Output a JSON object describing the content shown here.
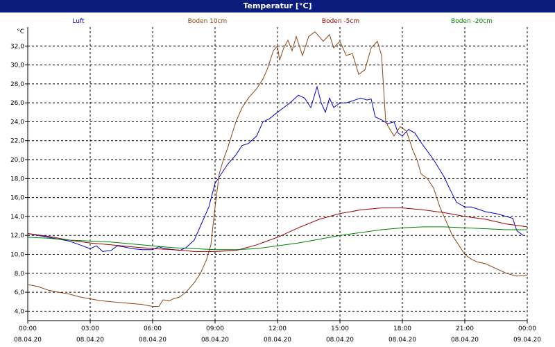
{
  "window": {
    "title": "Temperatur [°C]"
  },
  "chart_data": {
    "type": "line",
    "title": "Temperatur [°C]",
    "ylabel": "°C",
    "ylim": [
      3.0,
      34.0
    ],
    "xlim_hours": [
      0,
      24
    ],
    "grid": true,
    "legend_position": "top",
    "x_ticks": [
      {
        "h": 0,
        "time": "00:00",
        "date": "08.04.20"
      },
      {
        "h": 3,
        "time": "03:00",
        "date": "08.04.20"
      },
      {
        "h": 6,
        "time": "06:00",
        "date": "08.04.20"
      },
      {
        "h": 9,
        "time": "09:00",
        "date": "08.04.20"
      },
      {
        "h": 12,
        "time": "12:00",
        "date": "08.04.20"
      },
      {
        "h": 15,
        "time": "15:00",
        "date": "08.04.20"
      },
      {
        "h": 18,
        "time": "18:00",
        "date": "08.04.20"
      },
      {
        "h": 21,
        "time": "21:00",
        "date": "08.04.20"
      },
      {
        "h": 24,
        "time": "00:00",
        "date": "09.04.20"
      }
    ],
    "y_ticks": [
      "4,0",
      "6,0",
      "8,0",
      "10,0",
      "12,0",
      "14,0",
      "16,0",
      "18,0",
      "20,0",
      "22,0",
      "24,0",
      "26,0",
      "28,0",
      "30,0",
      "32,0"
    ],
    "y_tick_values": [
      4,
      6,
      8,
      10,
      12,
      14,
      16,
      18,
      20,
      22,
      24,
      26,
      28,
      30,
      32
    ],
    "series": [
      {
        "name": "Luft",
        "color": "#0000cc",
        "points": [
          [
            0,
            12.2
          ],
          [
            0.5,
            12.0
          ],
          [
            1,
            11.8
          ],
          [
            1.5,
            11.6
          ],
          [
            2,
            11.4
          ],
          [
            2.5,
            11.0
          ],
          [
            3,
            10.6
          ],
          [
            3.3,
            10.9
          ],
          [
            3.6,
            10.3
          ],
          [
            4,
            10.4
          ],
          [
            4.3,
            10.9
          ],
          [
            4.6,
            10.8
          ],
          [
            5,
            10.6
          ],
          [
            5.5,
            10.5
          ],
          [
            6,
            10.5
          ],
          [
            6.3,
            10.8
          ],
          [
            6.6,
            10.6
          ],
          [
            7,
            10.5
          ],
          [
            7.3,
            10.4
          ],
          [
            7.6,
            10.7
          ],
          [
            8,
            11.5
          ],
          [
            8.3,
            13.0
          ],
          [
            8.7,
            15.0
          ],
          [
            9,
            17.5
          ],
          [
            9.3,
            18.5
          ],
          [
            9.6,
            19.5
          ],
          [
            10,
            20.5
          ],
          [
            10.3,
            21.5
          ],
          [
            10.6,
            21.7
          ],
          [
            11,
            22.5
          ],
          [
            11.3,
            24.0
          ],
          [
            11.6,
            24.3
          ],
          [
            12,
            25.0
          ],
          [
            12.3,
            25.5
          ],
          [
            12.6,
            26.0
          ],
          [
            13,
            26.8
          ],
          [
            13.3,
            26.5
          ],
          [
            13.6,
            25.5
          ],
          [
            13.9,
            27.7
          ],
          [
            14.1,
            26.0
          ],
          [
            14.3,
            25.0
          ],
          [
            14.5,
            26.5
          ],
          [
            14.7,
            25.5
          ],
          [
            15,
            26.0
          ],
          [
            15.3,
            26.0
          ],
          [
            15.6,
            26.2
          ],
          [
            16,
            26.5
          ],
          [
            16.3,
            26.3
          ],
          [
            16.5,
            26.4
          ],
          [
            16.7,
            24.5
          ],
          [
            17,
            24.2
          ],
          [
            17.3,
            23.8
          ],
          [
            17.6,
            24.0
          ],
          [
            17.8,
            22.8
          ],
          [
            18,
            22.5
          ],
          [
            18.3,
            23.2
          ],
          [
            18.6,
            22.8
          ],
          [
            19,
            21.5
          ],
          [
            19.5,
            20.0
          ],
          [
            20,
            18.2
          ],
          [
            20.3,
            16.8
          ],
          [
            20.6,
            15.5
          ],
          [
            21,
            15.0
          ],
          [
            21.3,
            15.0
          ],
          [
            21.6,
            14.8
          ],
          [
            22,
            14.5
          ],
          [
            22.5,
            14.3
          ],
          [
            23,
            14.0
          ],
          [
            23.3,
            13.8
          ],
          [
            23.5,
            12.5
          ],
          [
            23.8,
            12.0
          ]
        ]
      },
      {
        "name": "Boden 10cm",
        "color": "#8b4513",
        "points": [
          [
            0,
            6.8
          ],
          [
            0.5,
            6.6
          ],
          [
            1,
            6.2
          ],
          [
            1.5,
            6.0
          ],
          [
            2,
            5.8
          ],
          [
            2.5,
            5.5
          ],
          [
            3,
            5.3
          ],
          [
            3.5,
            5.1
          ],
          [
            4,
            5.0
          ],
          [
            4.5,
            4.9
          ],
          [
            5,
            4.8
          ],
          [
            5.5,
            4.7
          ],
          [
            6,
            4.5
          ],
          [
            6.3,
            4.5
          ],
          [
            6.5,
            5.2
          ],
          [
            6.8,
            5.1
          ],
          [
            7,
            5.3
          ],
          [
            7.3,
            5.5
          ],
          [
            7.6,
            6.0
          ],
          [
            8,
            7.0
          ],
          [
            8.3,
            8.0
          ],
          [
            8.6,
            9.5
          ],
          [
            8.8,
            11.0
          ],
          [
            9,
            15.0
          ],
          [
            9.2,
            18.5
          ],
          [
            9.4,
            20.0
          ],
          [
            9.6,
            21.2
          ],
          [
            10,
            24.0
          ],
          [
            10.3,
            25.5
          ],
          [
            10.6,
            26.5
          ],
          [
            11,
            27.5
          ],
          [
            11.3,
            28.5
          ],
          [
            11.5,
            29.5
          ],
          [
            11.8,
            31.5
          ],
          [
            12,
            32.0
          ],
          [
            12.1,
            30.5
          ],
          [
            12.3,
            31.8
          ],
          [
            12.5,
            32.6
          ],
          [
            12.7,
            31.5
          ],
          [
            12.9,
            33.0
          ],
          [
            13.2,
            31.0
          ],
          [
            13.5,
            33.0
          ],
          [
            13.8,
            33.5
          ],
          [
            14,
            33.0
          ],
          [
            14.2,
            32.5
          ],
          [
            14.5,
            33.2
          ],
          [
            14.7,
            31.8
          ],
          [
            15,
            32.5
          ],
          [
            15.3,
            31.0
          ],
          [
            15.6,
            31.2
          ],
          [
            15.9,
            29.0
          ],
          [
            16.2,
            29.5
          ],
          [
            16.5,
            31.8
          ],
          [
            16.8,
            32.5
          ],
          [
            17,
            31.0
          ],
          [
            17.2,
            24.0
          ],
          [
            17.4,
            23.2
          ],
          [
            17.6,
            22.5
          ],
          [
            17.9,
            23.5
          ],
          [
            18.2,
            23.0
          ],
          [
            18.5,
            21.0
          ],
          [
            18.7,
            20.0
          ],
          [
            18.9,
            18.5
          ],
          [
            19.2,
            18.0
          ],
          [
            19.5,
            17.0
          ],
          [
            19.8,
            15.0
          ],
          [
            20.1,
            13.5
          ],
          [
            20.4,
            12.0
          ],
          [
            20.7,
            11.0
          ],
          [
            21,
            10.0
          ],
          [
            21.3,
            9.5
          ],
          [
            21.6,
            9.2
          ],
          [
            22,
            9.0
          ],
          [
            22.5,
            8.5
          ],
          [
            23,
            8.0
          ],
          [
            23.5,
            7.7
          ],
          [
            24,
            7.8
          ]
        ]
      },
      {
        "name": "Boden -5cm",
        "color": "#990000",
        "points": [
          [
            0,
            12.2
          ],
          [
            1,
            11.9
          ],
          [
            2,
            11.5
          ],
          [
            3,
            11.2
          ],
          [
            4,
            11.0
          ],
          [
            5,
            10.8
          ],
          [
            6,
            10.6
          ],
          [
            7,
            10.5
          ],
          [
            8,
            10.3
          ],
          [
            9,
            10.3
          ],
          [
            10,
            10.4
          ],
          [
            11,
            11.0
          ],
          [
            12,
            11.8
          ],
          [
            13,
            12.8
          ],
          [
            14,
            13.7
          ],
          [
            15,
            14.3
          ],
          [
            16,
            14.7
          ],
          [
            17,
            14.9
          ],
          [
            18,
            14.9
          ],
          [
            19,
            14.7
          ],
          [
            20,
            14.4
          ],
          [
            21,
            14.0
          ],
          [
            22,
            13.7
          ],
          [
            23,
            13.2
          ],
          [
            24,
            12.9
          ]
        ]
      },
      {
        "name": "Boden -20cm",
        "color": "#008000",
        "points": [
          [
            0,
            11.8
          ],
          [
            1,
            11.7
          ],
          [
            2,
            11.5
          ],
          [
            3,
            11.4
          ],
          [
            4,
            11.3
          ],
          [
            5,
            11.1
          ],
          [
            6,
            10.9
          ],
          [
            7,
            10.7
          ],
          [
            8,
            10.6
          ],
          [
            9,
            10.5
          ],
          [
            10,
            10.5
          ],
          [
            11,
            10.6
          ],
          [
            12,
            10.9
          ],
          [
            13,
            11.2
          ],
          [
            14,
            11.6
          ],
          [
            15,
            12.0
          ],
          [
            16,
            12.3
          ],
          [
            17,
            12.6
          ],
          [
            18,
            12.8
          ],
          [
            19,
            12.9
          ],
          [
            20,
            12.9
          ],
          [
            21,
            12.8
          ],
          [
            22,
            12.7
          ],
          [
            23,
            12.6
          ],
          [
            24,
            12.6
          ]
        ]
      }
    ]
  }
}
